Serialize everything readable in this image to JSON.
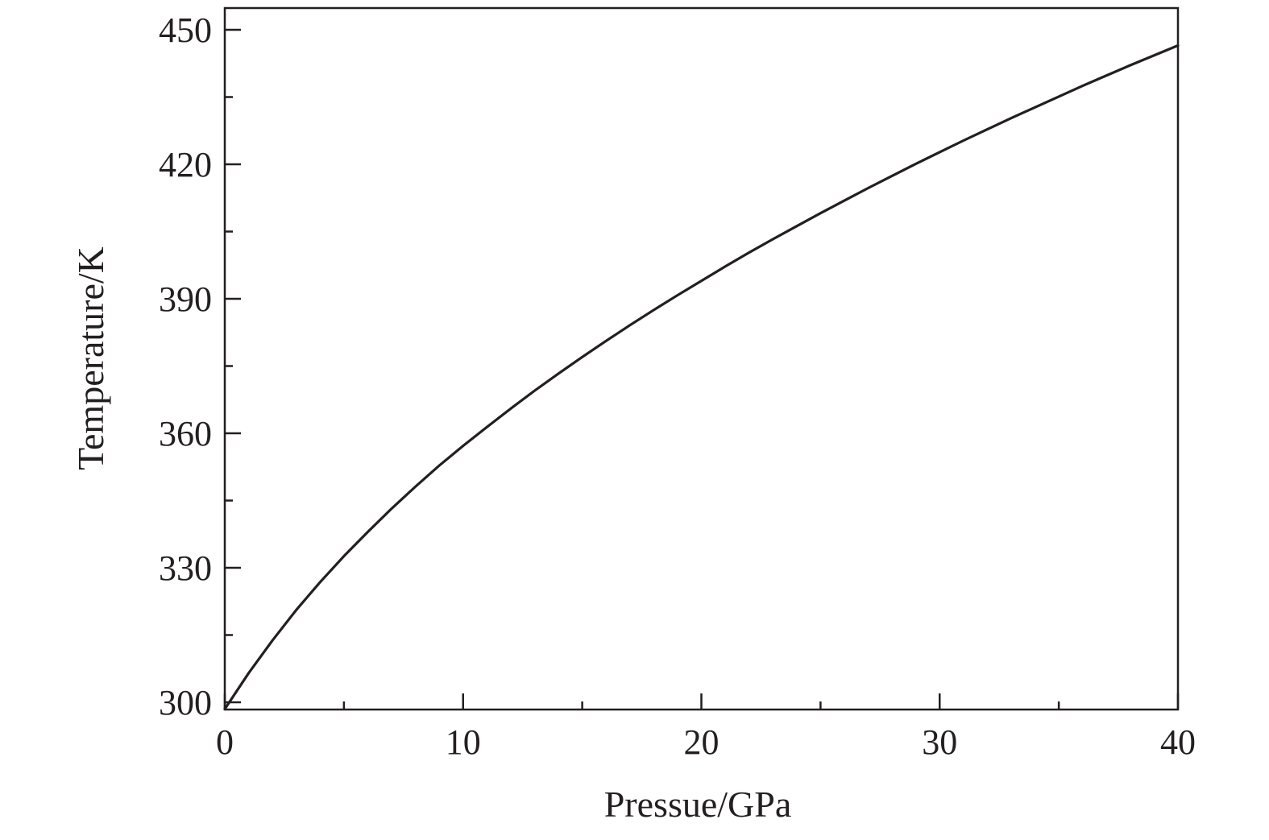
{
  "chart_data": {
    "type": "line",
    "title": "",
    "xlabel": "Pressue/GPa",
    "ylabel": "Temperature/K",
    "xlim": [
      0,
      40
    ],
    "ylim": [
      300,
      455
    ],
    "x_ticks": [
      0,
      10,
      20,
      30,
      40
    ],
    "x_tick_labels": [
      "0",
      "10",
      "20",
      "30",
      "40"
    ],
    "x_minor_ticks": [
      5,
      15,
      25,
      35
    ],
    "y_ticks": [
      300,
      330,
      360,
      390,
      420,
      450
    ],
    "y_tick_labels": [
      "300",
      "330",
      "360",
      "390",
      "420",
      "450"
    ],
    "y_minor_ticks": [
      315,
      345,
      375,
      405,
      435
    ],
    "grid": false,
    "legend": "none",
    "line_color": "#231f20",
    "series": [
      {
        "x": [
          0,
          1,
          2,
          3,
          4,
          5,
          6,
          7,
          8,
          9,
          10,
          11,
          12,
          13,
          14,
          15,
          16,
          17,
          18,
          19,
          20,
          21,
          22,
          23,
          24,
          25,
          26,
          27,
          28,
          29,
          30,
          31,
          32,
          33,
          34,
          35,
          36,
          37,
          38,
          39,
          40
        ],
        "values": [
          298.5,
          306.5,
          313.8,
          320.6,
          326.8,
          332.6,
          338.0,
          343.2,
          348.1,
          352.8,
          357.2,
          361.4,
          365.5,
          369.5,
          373.3,
          377.0,
          380.6,
          384.1,
          387.5,
          390.8,
          394.0,
          397.2,
          400.3,
          403.3,
          406.2,
          409.1,
          411.9,
          414.7,
          417.4,
          420.1,
          422.7,
          425.3,
          427.8,
          430.3,
          432.7,
          435.1,
          437.5,
          439.8,
          442.1,
          444.3,
          446.5
        ]
      }
    ]
  }
}
